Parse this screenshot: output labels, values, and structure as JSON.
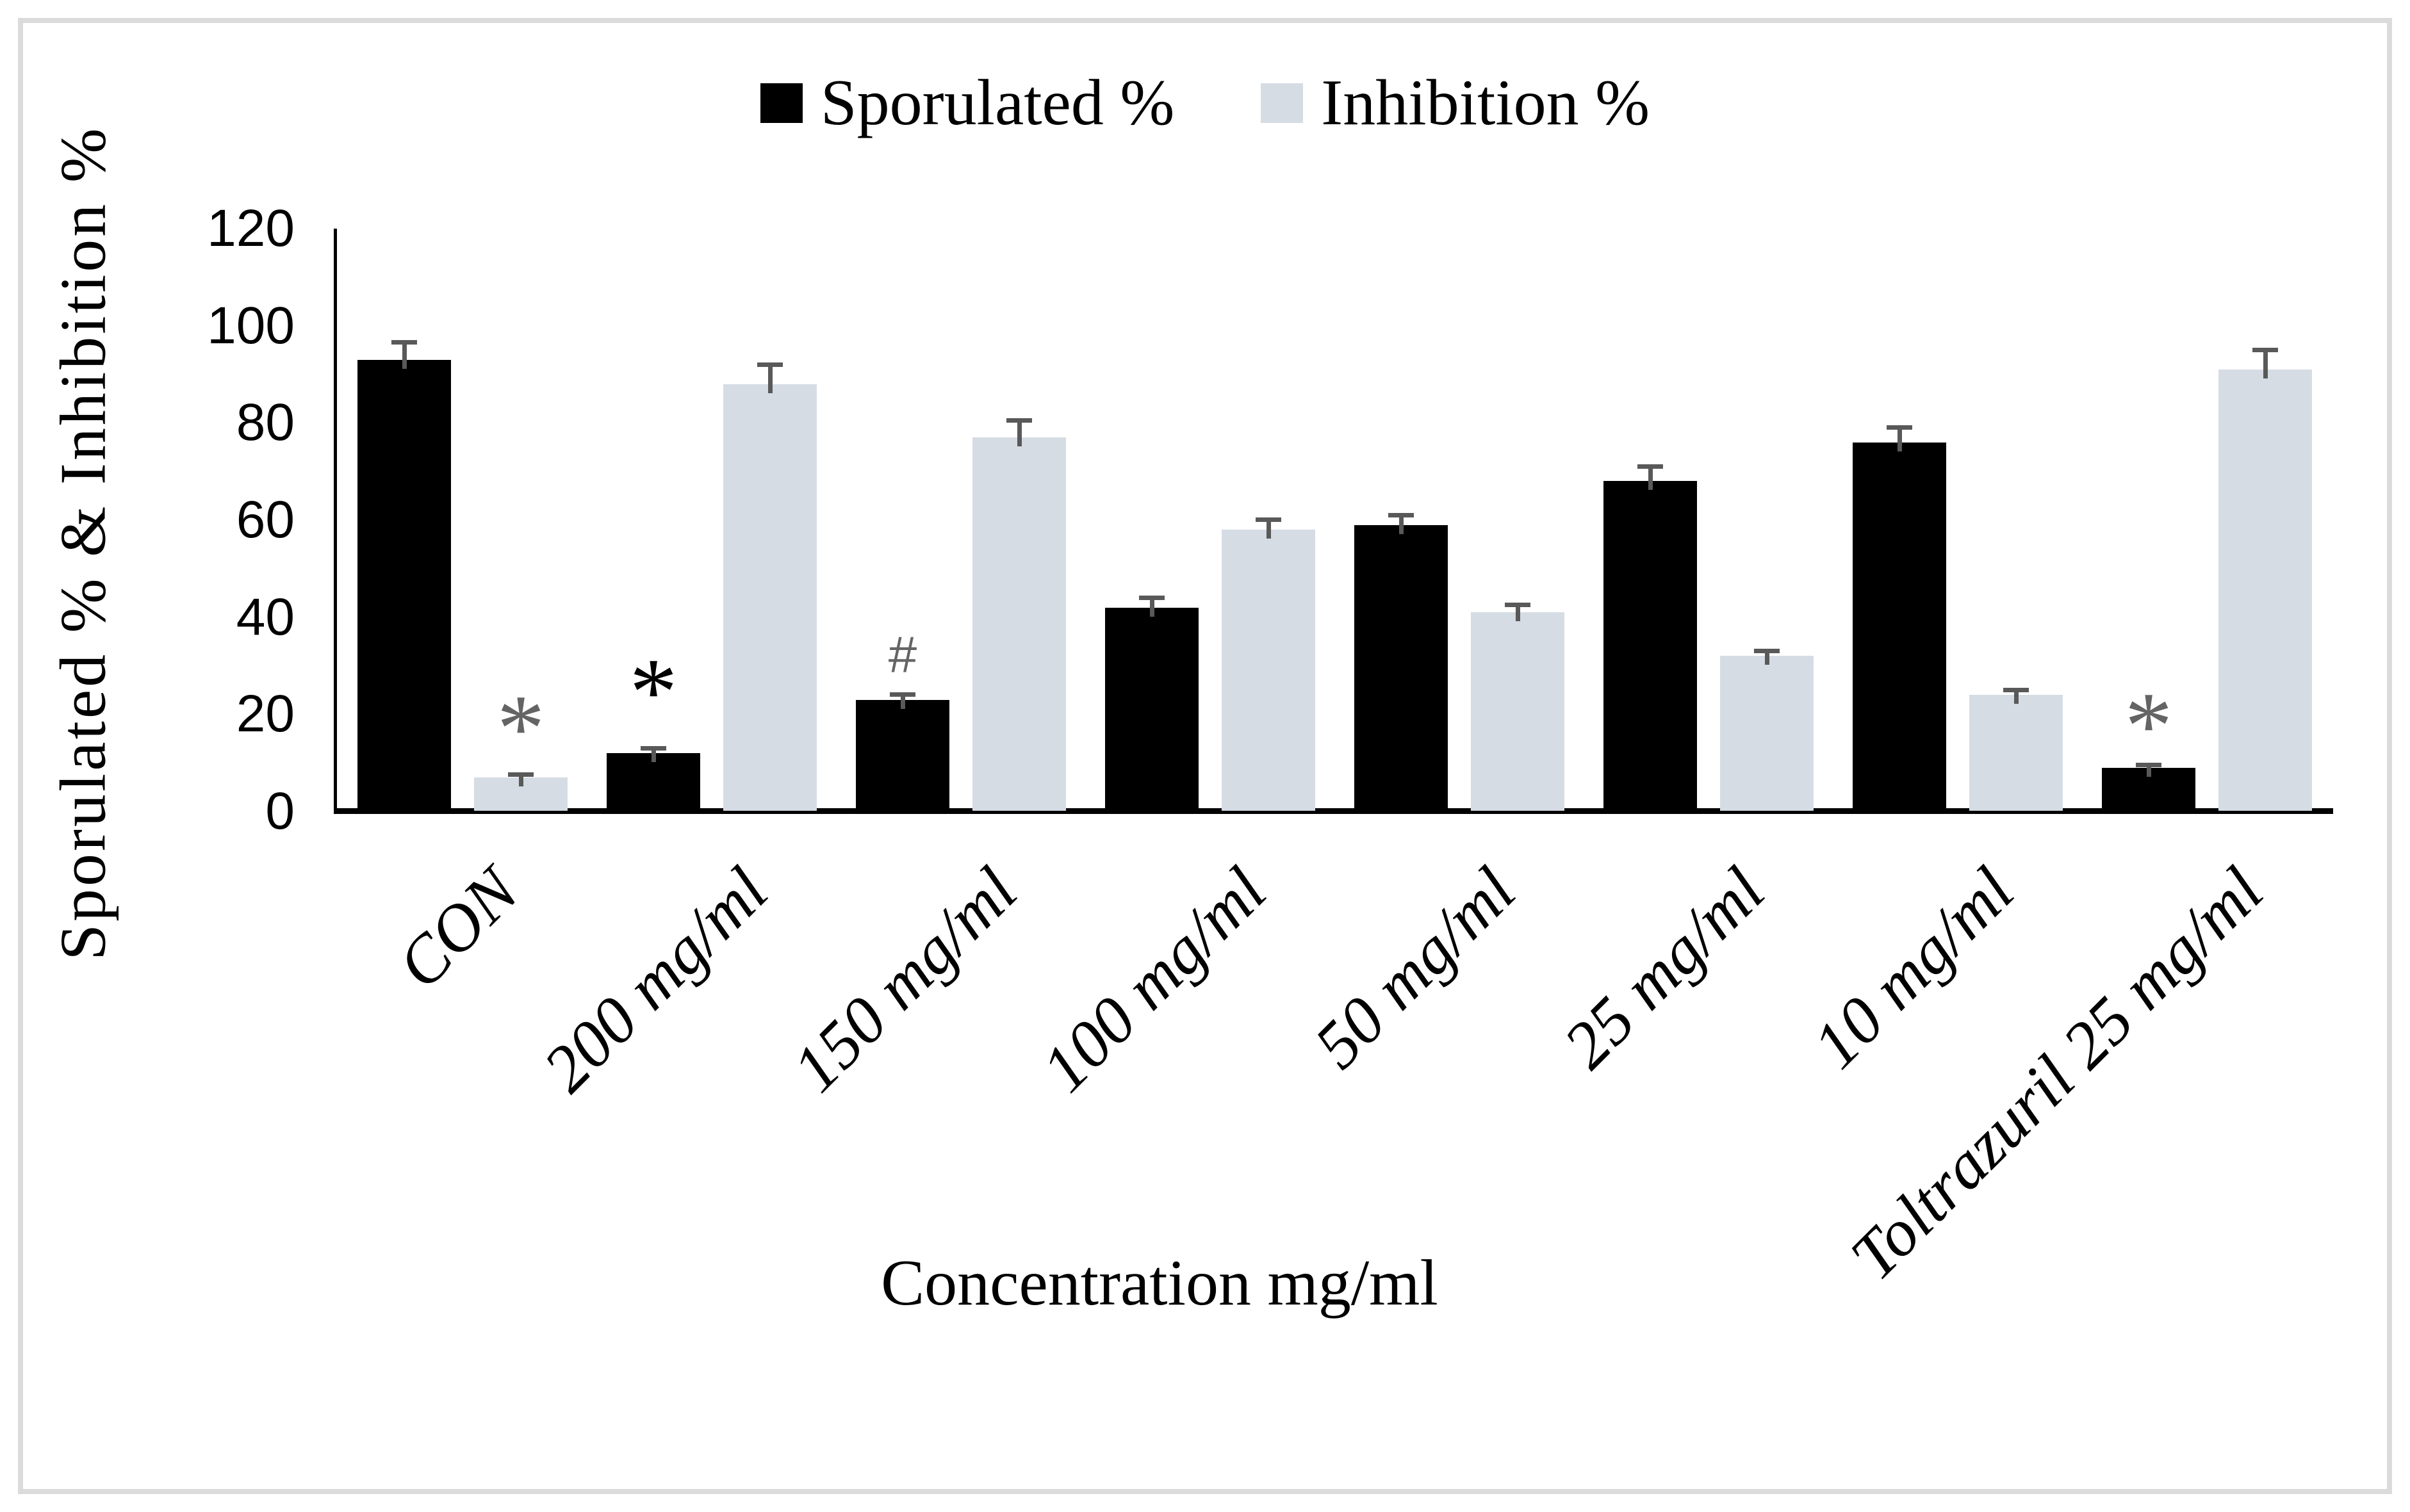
{
  "frame": {
    "border_color": "#dbdbdb",
    "background": "#ffffff"
  },
  "legend": [
    {
      "label": "Sporulated %",
      "color": "#000000"
    },
    {
      "label": "Inhibition %",
      "color": "#d6dce4"
    }
  ],
  "y_axis": {
    "ticks": [
      0,
      20,
      40,
      60,
      80,
      100,
      120
    ]
  },
  "chart_data": {
    "type": "bar",
    "title": "",
    "xlabel": "Concentration mg/ml",
    "ylabel": "Sporulated % & Inhibition %",
    "ylim": [
      0,
      120
    ],
    "grid": false,
    "legend_position": "top-center",
    "categories": [
      "CON",
      "200 mg/ml",
      "150 mg/ml",
      "100 mg/ml",
      "50 mg/ml",
      "25 mg/ml",
      "10 mg/ml",
      "Toltrazuril 25 mg/ml"
    ],
    "series": [
      {
        "name": "Sporulated %",
        "color": "#000000",
        "values": [
          93,
          12,
          23,
          42,
          59,
          68,
          76,
          9
        ],
        "errors": [
          4,
          1.5,
          1.5,
          2.5,
          2.5,
          3.5,
          3.5,
          1
        ]
      },
      {
        "name": "Inhibition %",
        "color": "#d6dce4",
        "values": [
          7,
          88,
          77,
          58,
          41,
          32,
          24,
          91
        ],
        "errors": [
          1,
          4.5,
          4,
          2.5,
          2,
          1.5,
          1.5,
          4.5
        ]
      }
    ],
    "error_bar_color": "#595959",
    "annotations": [
      {
        "category_index": 0,
        "series_index": 1,
        "symbol": "*",
        "color": "#646464",
        "y": 22
      },
      {
        "category_index": 1,
        "series_index": 0,
        "symbol": "*",
        "color": "#000000",
        "y": 29.5
      },
      {
        "category_index": 2,
        "series_index": 0,
        "symbol": "#",
        "color": "#646464",
        "y": 33.5
      },
      {
        "category_index": 7,
        "series_index": 0,
        "symbol": "*",
        "color": "#646464",
        "y": 22.5
      }
    ]
  }
}
